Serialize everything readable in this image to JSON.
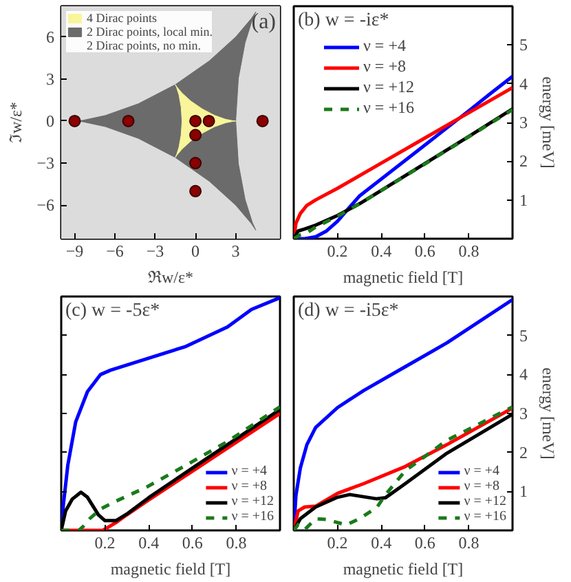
{
  "chart_data": [
    {
      "type": "area",
      "annotations": [
        "(a)"
      ],
      "xlabel": "ℜw/ε*",
      "ylabel": "ℑw/ε*",
      "xlim": [
        -10,
        6.3
      ],
      "ylim": [
        -8.4,
        8.2
      ],
      "xticks": [
        -9,
        -6,
        -3,
        0,
        3
      ],
      "yticks": [
        -6,
        -3,
        0,
        3,
        6
      ],
      "grid": false,
      "legend": "top left",
      "bands": [
        {
          "axis": "x",
          "from": -10,
          "to": 6.3,
          "label": "2 Dirac points, no min.",
          "color": "#dcdcdc"
        }
      ],
      "series": [
        {
          "name": "4 Dirac points",
          "color": "#f8f59a",
          "x": [
            3,
            2.8,
            2.23,
            1.41,
            0.5,
            -0.35,
            -1,
            -1.38,
            -1.5,
            -1.41,
            -1.23,
            -1.07,
            -1,
            -1.07,
            -1.23,
            -1.41,
            -1.5,
            -1.38,
            -1,
            -0.35,
            0.5,
            1.41,
            2.23,
            2.8
          ],
          "values": [
            0,
            0.02,
            0.13,
            0.41,
            0.87,
            1.43,
            2,
            2.43,
            2.6,
            2.41,
            1.87,
            1.02,
            0,
            -1.02,
            -1.87,
            -2.41,
            -2.6,
            -2.43,
            -2,
            -1.43,
            -0.87,
            -0.41,
            -0.13,
            -0.02
          ]
        },
        {
          "name": "2 Dirac points, local min.",
          "color": "#6b6b6b",
          "x": [
            -9,
            -8.39,
            -6.7,
            -4.24,
            -1.5,
            1.04,
            3,
            4.15,
            4.5,
            4.24,
            3.7,
            3.2,
            3,
            3.2,
            3.7,
            4.24,
            4.5,
            4.15,
            3,
            1.04,
            -1.5,
            -4.24,
            -6.7,
            -8.39
          ],
          "values": [
            0,
            -0.05,
            -0.4,
            -1.24,
            -2.6,
            -4.3,
            -6,
            -7.3,
            -7.79,
            -7.24,
            -5.6,
            -3.05,
            0,
            3.05,
            5.6,
            7.24,
            7.79,
            7.3,
            6,
            4.3,
            2.6,
            1.24,
            0.4,
            0.05
          ]
        },
        {
          "type": "scatter",
          "marker": "circle",
          "color": "#8b0000",
          "x": [
            -9,
            -5,
            0,
            1,
            5,
            0,
            0,
            0
          ],
          "values": [
            0,
            0,
            0,
            0,
            0,
            -1,
            -3,
            -5
          ]
        }
      ]
    },
    {
      "type": "line",
      "title": "(b)  w = -iε*",
      "xlabel": "magnetic field [T]",
      "ylabel": "energy [meV]",
      "xlim": [
        0,
        1
      ],
      "ylim": [
        0,
        6
      ],
      "xticks": [
        0.2,
        0.4,
        0.6,
        0.8
      ],
      "yticks": [
        1,
        2,
        3,
        4,
        5
      ],
      "grid": false,
      "legend": "top left",
      "series": [
        {
          "name": "ν = +4",
          "color": "#0000ff",
          "x": [
            0,
            0.05,
            0.1,
            0.15,
            0.2,
            0.25,
            0.3,
            0.4,
            0.5,
            0.6,
            0.7,
            0.8,
            0.9,
            1
          ],
          "values": [
            0,
            0,
            0.05,
            0.2,
            0.45,
            0.78,
            1.1,
            1.54,
            1.98,
            2.42,
            2.86,
            3.3,
            3.75,
            4.19
          ]
        },
        {
          "name": "ν = +8",
          "color": "#ff0000",
          "x": [
            0,
            0.01,
            0.03,
            0.06,
            0.1,
            0.2,
            0.4,
            0.6,
            0.8,
            1
          ],
          "values": [
            0,
            0.4,
            0.65,
            0.86,
            1,
            1.3,
            1.95,
            2.6,
            3.25,
            3.9
          ]
        },
        {
          "name": "ν = +12",
          "color": "#000000",
          "x": [
            0,
            0.02,
            0.05,
            0.1,
            0.2,
            0.3,
            0.6,
            0.8,
            1
          ],
          "values": [
            0,
            0.2,
            0.25,
            0.35,
            0.6,
            0.9,
            1.94,
            2.64,
            3.35
          ]
        },
        {
          "name": "ν = +16",
          "color": "#1a7a1a",
          "line_style": "dashed",
          "x": [
            0,
            0.03,
            0.06,
            0.1,
            0.2,
            0.3,
            0.6,
            0.8,
            1
          ],
          "values": [
            0,
            0.1,
            0.15,
            0.3,
            0.58,
            0.9,
            1.93,
            2.63,
            3.33
          ]
        }
      ]
    },
    {
      "type": "line",
      "title": "(c)  w = -5ε*",
      "xlabel": "magnetic field [T]",
      "xlim": [
        0,
        1
      ],
      "ylim": [
        0,
        6
      ],
      "xticks": [
        0.2,
        0.4,
        0.6,
        0.8
      ],
      "yticks": [
        1,
        2,
        3,
        4,
        5
      ],
      "tick_labels": "x",
      "grid": false,
      "legend": "bottom right",
      "series": [
        {
          "name": "ν = +4",
          "color": "#0000ff",
          "x": [
            0,
            0.01,
            0.03,
            0.066,
            0.12,
            0.18,
            0.225,
            0.385,
            0.57,
            0.76,
            0.87,
            1
          ],
          "values": [
            0,
            0.67,
            1.67,
            2.78,
            3.56,
            4,
            4.11,
            4.39,
            4.72,
            5.22,
            5.67,
            5.97
          ]
        },
        {
          "name": "ν = +8",
          "color": "#ff0000",
          "x": [
            0,
            0.19,
            0.25,
            0.3,
            0.4,
            0.6,
            0.8,
            1
          ],
          "values": [
            0,
            0,
            0.2,
            0.4,
            0.78,
            1.52,
            2.26,
            3
          ]
        },
        {
          "name": "ν = +12",
          "color": "#000000",
          "x": [
            0,
            0.02,
            0.05,
            0.09,
            0.12,
            0.17,
            0.2,
            0.25,
            0.3,
            0.4,
            0.6,
            0.8,
            1
          ],
          "values": [
            0,
            0.5,
            0.8,
            0.98,
            0.85,
            0.4,
            0.25,
            0.25,
            0.42,
            0.84,
            1.6,
            2.35,
            3.1
          ]
        },
        {
          "name": "ν = +16",
          "color": "#1a7a1a",
          "line_style": "dashed",
          "x": [
            0,
            0.08,
            0.1,
            0.13,
            0.18,
            0.25,
            0.39,
            0.57,
            0.76,
            1
          ],
          "values": [
            0,
            0,
            0.1,
            0.3,
            0.55,
            0.75,
            1.11,
            1.67,
            2.28,
            3.17
          ]
        }
      ]
    },
    {
      "type": "line",
      "title": "(d)  w = -i5ε*",
      "xlabel": "magnetic field [T]",
      "ylabel": "energy [meV]",
      "xlim": [
        0,
        1
      ],
      "ylim": [
        0,
        6
      ],
      "xticks": [
        0.2,
        0.4,
        0.6,
        0.8
      ],
      "yticks": [
        1,
        2,
        3,
        4,
        5
      ],
      "grid": false,
      "legend": "bottom right",
      "series": [
        {
          "name": "ν = +4",
          "color": "#0000ff",
          "x": [
            0,
            0.01,
            0.03,
            0.06,
            0.1,
            0.2,
            0.32,
            0.51,
            0.7,
            1
          ],
          "values": [
            0,
            0.9,
            1.6,
            2.2,
            2.64,
            3.15,
            3.59,
            4.2,
            4.81,
            5.92
          ]
        },
        {
          "name": "ν = +8",
          "color": "#ff0000",
          "x": [
            0,
            0.02,
            0.05,
            0.1,
            0.2,
            0.32,
            0.51,
            0.7,
            1
          ],
          "values": [
            0,
            0.5,
            0.6,
            0.62,
            0.95,
            1.2,
            1.64,
            2.2,
            3.14
          ]
        },
        {
          "name": "ν = +12",
          "color": "#000000",
          "x": [
            0,
            0.03,
            0.1,
            0.2,
            0.256,
            0.38,
            0.42,
            0.51,
            0.7,
            1
          ],
          "values": [
            0,
            0.3,
            0.6,
            0.85,
            0.92,
            0.81,
            0.84,
            1.2,
            1.98,
            2.98
          ]
        },
        {
          "name": "ν = +16",
          "color": "#1a7a1a",
          "line_style": "dashed",
          "x": [
            0,
            0.02,
            0.05,
            0.1,
            0.15,
            0.24,
            0.3,
            0.38,
            0.42,
            0.51,
            0.7,
            1
          ],
          "values": [
            0,
            0.15,
            0.02,
            0.3,
            0.28,
            0.14,
            0.3,
            0.59,
            0.92,
            1.53,
            2.31,
            3.17
          ]
        }
      ]
    }
  ]
}
